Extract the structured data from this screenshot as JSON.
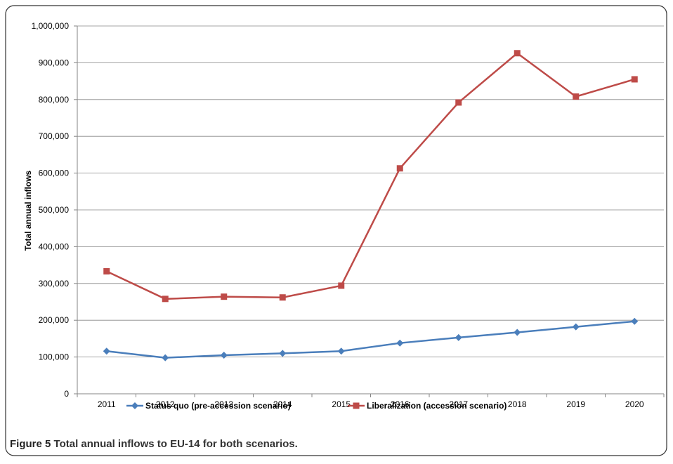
{
  "chart_data": {
    "type": "line",
    "y_label": "Total annual inflows",
    "categories": [
      "2011",
      "2012",
      "2013",
      "2014",
      "2015",
      "2016",
      "2017",
      "2018",
      "2019",
      "2020"
    ],
    "series": [
      {
        "name": "Status quo (pre-accession scenario)",
        "color": "#4a7ebb",
        "marker": "diamond",
        "values": [
          116000,
          98000,
          105000,
          110000,
          116000,
          138000,
          153000,
          167000,
          182000,
          197000
        ]
      },
      {
        "name": "Liberalization (accession scenario)",
        "color": "#be4b48",
        "marker": "square",
        "values": [
          333000,
          258000,
          264000,
          262000,
          294000,
          613000,
          792000,
          926000,
          808000,
          855000
        ]
      }
    ],
    "ylim": [
      0,
      1000000
    ],
    "yticks": [
      0,
      {
        "value": 100000,
        "label": "100,000"
      },
      {
        "value": 200000,
        "label": "200,000"
      },
      {
        "value": 300000,
        "label": "300,000"
      },
      {
        "value": 400000,
        "label": "400,000"
      },
      {
        "value": 500000,
        "label": "500,000"
      },
      {
        "value": 600000,
        "label": "600,000"
      },
      {
        "value": 700000,
        "label": "700,000"
      },
      {
        "value": 800000,
        "label": "800,000"
      },
      {
        "value": 900000,
        "label": "900,000"
      },
      {
        "value": 1000000,
        "label": "1,000,000"
      }
    ],
    "grid": true,
    "legend": "bottom",
    "caption_label": "Figure 5",
    "caption_text": "Total annual inflows to EU-14 for both scenarios."
  }
}
